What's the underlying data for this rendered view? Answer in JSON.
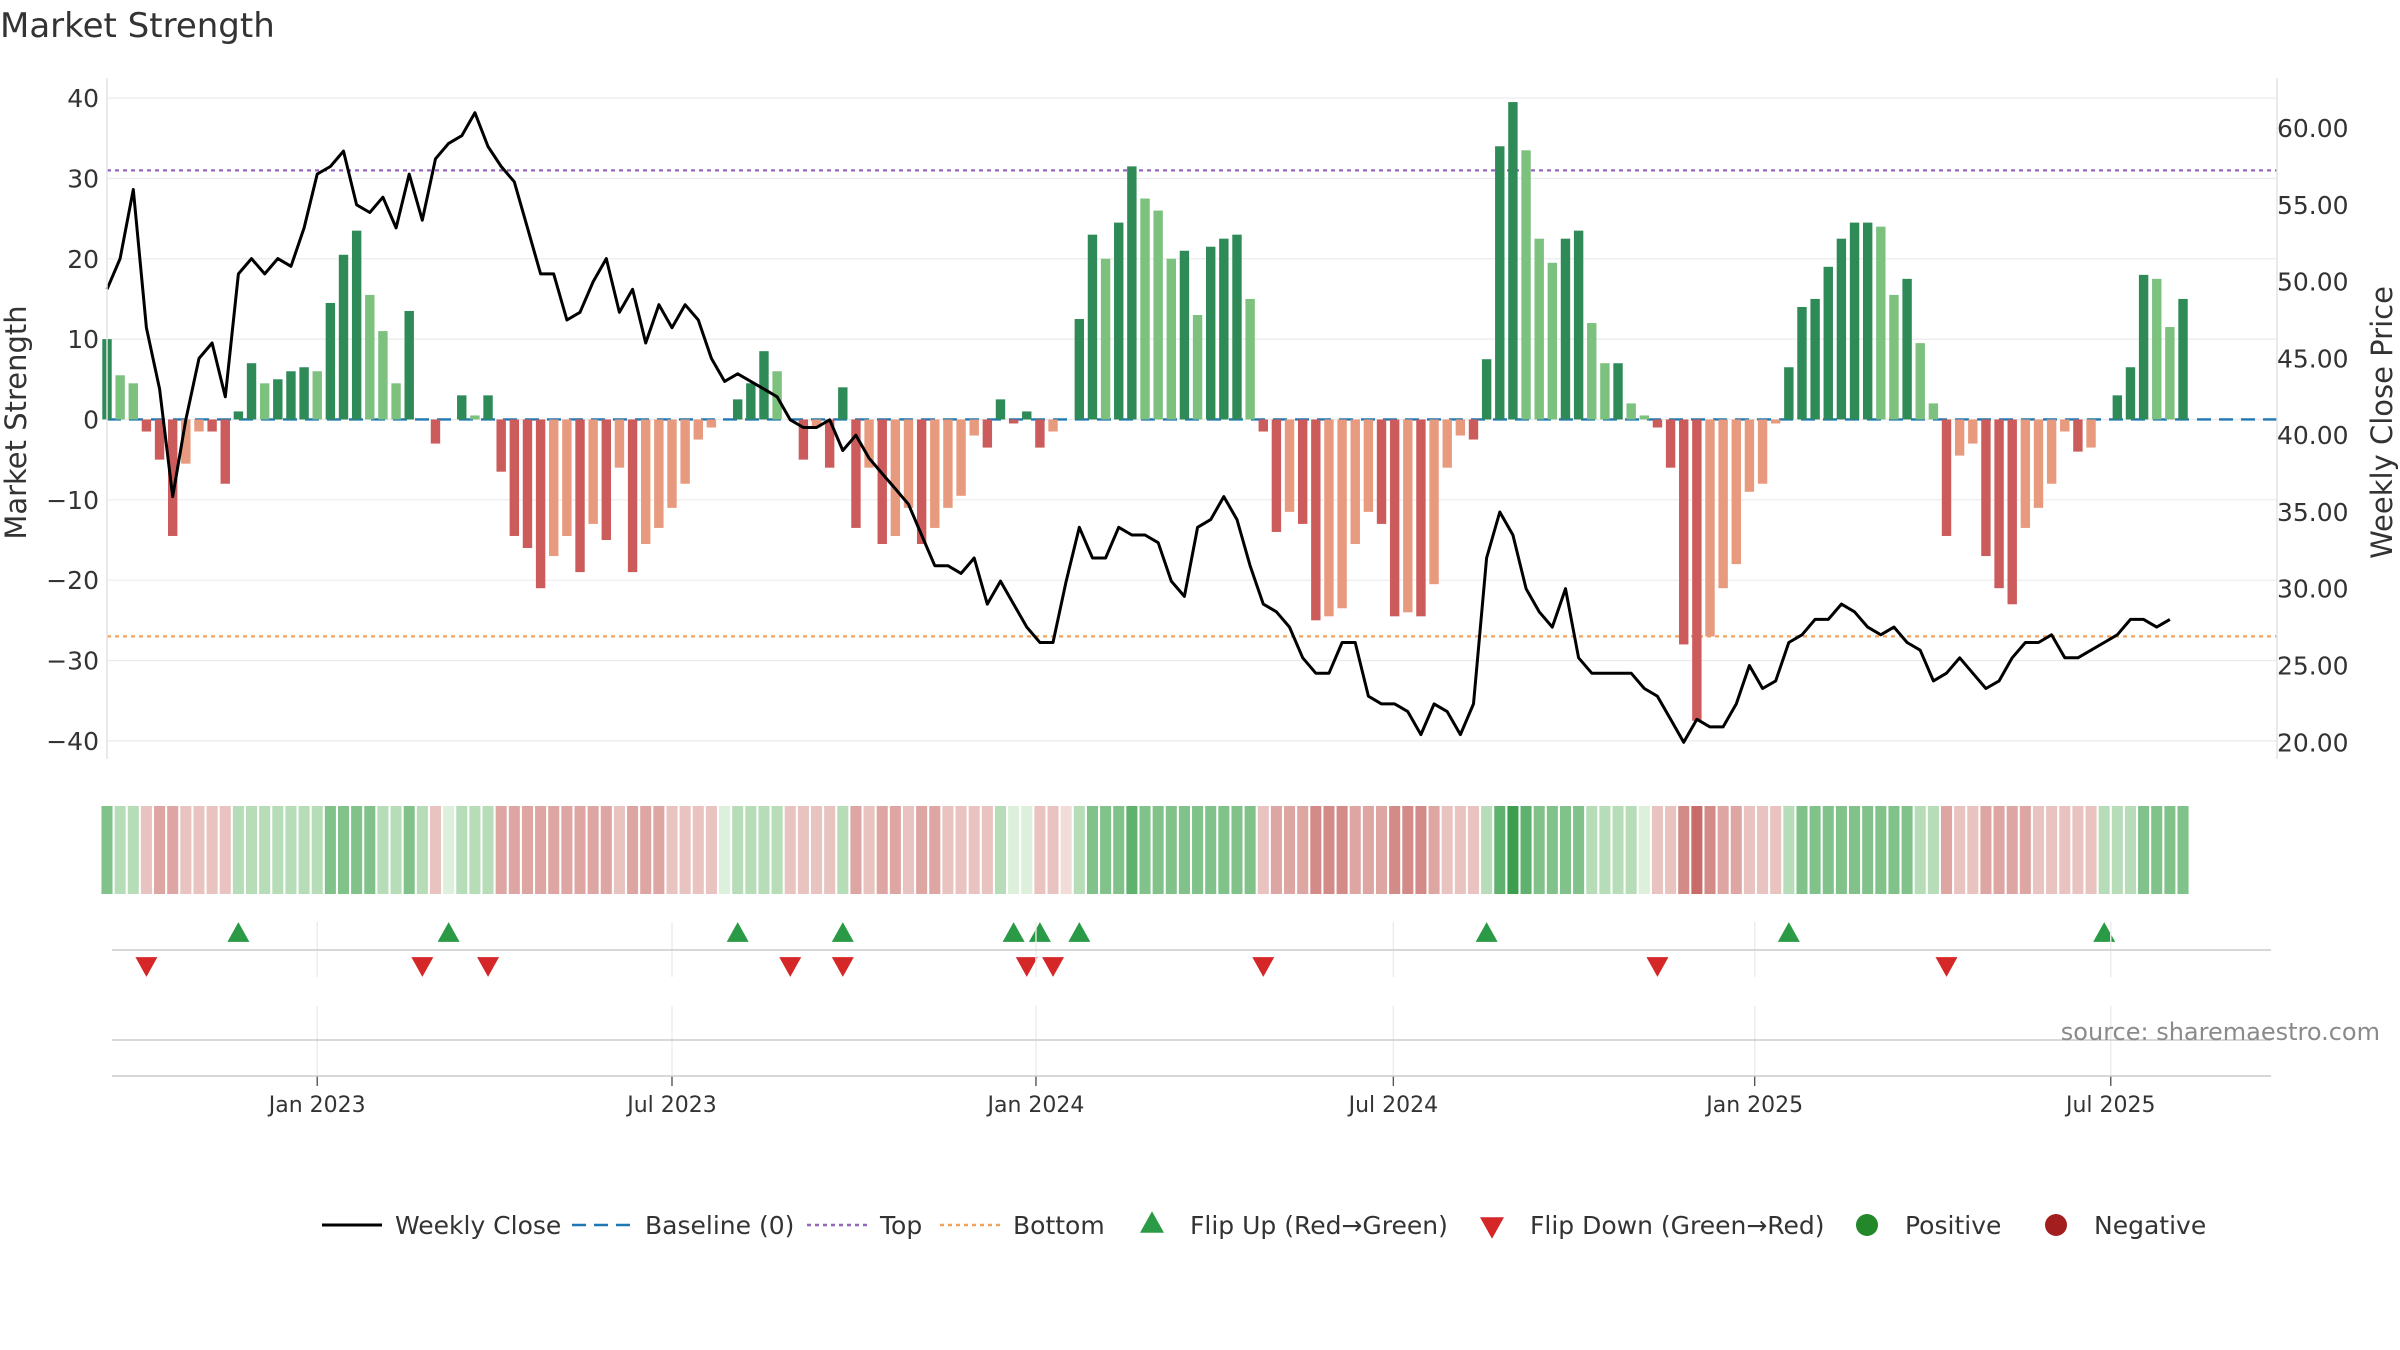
{
  "chart_data": {
    "type": "bar",
    "title": "Market Strength",
    "ylabel": "Market Strength",
    "y2label": "Weekly Close Price",
    "ylim": [
      -44,
      42
    ],
    "y2lim": [
      18.0,
      63.0
    ],
    "yticks": [
      40,
      30,
      20,
      10,
      0,
      -10,
      -20,
      -30,
      -40
    ],
    "ytick_labels": [
      "40",
      "30",
      "20",
      "10",
      "0",
      "−10",
      "−20",
      "−30",
      "−40"
    ],
    "y2ticks": [
      60,
      55,
      50,
      45,
      40,
      35,
      30,
      25,
      20
    ],
    "y2tick_labels": [
      "60.00",
      "55.00",
      "50.00",
      "45.00",
      "40.00",
      "35.00",
      "30.00",
      "25.00",
      "20.00"
    ],
    "x_range_weeks": [
      0,
      165
    ],
    "x_ticks": [
      {
        "label": "Jan 2023",
        "week": 16
      },
      {
        "label": "Jul 2023",
        "week": 43
      },
      {
        "label": "Jan 2024",
        "week": 70.7
      },
      {
        "label": "Jul 2024",
        "week": 97.9
      },
      {
        "label": "Jan 2025",
        "week": 125.4
      },
      {
        "label": "Jul 2025",
        "week": 152.5
      }
    ],
    "top_line": 31,
    "bottom_line": -27,
    "baseline": 0,
    "strength": [
      10,
      5.5,
      4.5,
      -1.5,
      -5,
      -14.5,
      -5.5,
      -1.5,
      -1.5,
      -8,
      1,
      7,
      4.5,
      5,
      6,
      6.5,
      6,
      14.5,
      20.5,
      23.5,
      15.5,
      11,
      4.5,
      13.5,
      0,
      -3,
      0,
      3,
      0.5,
      3,
      -6.5,
      -14.5,
      -16,
      -21,
      -17,
      -14.5,
      -19,
      -13,
      -15,
      -6,
      -19,
      -15.5,
      -13.5,
      -11,
      -8,
      -2.5,
      -1,
      0,
      2.5,
      4.5,
      8.5,
      6,
      0,
      -5,
      -1,
      -6,
      4,
      -13.5,
      -6,
      -15.5,
      -14.5,
      -11,
      -15.5,
      -13.5,
      -11,
      -9.5,
      -2,
      -3.5,
      2.5,
      -0.5,
      1,
      -3.5,
      -1.5,
      0,
      12.5,
      23,
      20,
      24.5,
      31.5,
      27.5,
      26,
      20,
      21,
      13,
      21.5,
      22.5,
      23,
      15,
      -1.5,
      -14,
      -11.5,
      -13,
      -25,
      -24.5,
      -23.5,
      -15.5,
      -11.5,
      -13,
      -24.5,
      -24,
      -24.5,
      -20.5,
      -6,
      -2,
      -2.5,
      7.5,
      34,
      39.5,
      33.5,
      22.5,
      19.5,
      22.5,
      23.5,
      12,
      7,
      7,
      2,
      0.5,
      -1,
      -6,
      -28,
      -37.5,
      -27,
      -21,
      -18,
      -9,
      -8,
      -0.5,
      6.5,
      14,
      15,
      19,
      22.5,
      24.5,
      24.5,
      24,
      15.5,
      17.5,
      9.5,
      2,
      -14.5,
      -4.5,
      -3,
      -17,
      -21,
      -23,
      -13.5,
      -11,
      -8,
      -1.5,
      -4,
      -3.5,
      0,
      3,
      6.5,
      18,
      17.5,
      11.5,
      15
    ],
    "weekly_close": [
      49.5,
      51.5,
      56,
      47,
      43,
      36,
      41,
      45,
      46,
      42.5,
      50.5,
      51.5,
      50.5,
      51.5,
      51,
      53.5,
      57,
      57.5,
      58.5,
      55,
      54.5,
      55.5,
      53.5,
      57,
      54,
      58,
      59,
      59.5,
      61,
      58.8,
      57.5,
      56.5,
      53.5,
      50.5,
      50.5,
      47.5,
      48,
      50,
      51.5,
      48,
      49.5,
      46,
      48.5,
      47,
      48.5,
      47.5,
      45,
      43.5,
      44,
      43.5,
      43,
      42.5,
      41,
      40.5,
      40.5,
      41,
      39,
      40,
      38.5,
      37.5,
      36.5,
      35.5,
      33.5,
      31.5,
      31.5,
      31,
      32,
      29,
      30.5,
      29,
      27.5,
      26.5,
      26.5,
      30.5,
      34,
      32,
      32,
      34,
      33.5,
      33.5,
      33,
      30.5,
      29.5,
      34,
      34.5,
      36,
      34.5,
      31.5,
      29,
      28.5,
      27.5,
      25.5,
      24.5,
      24.5,
      26.5,
      26.5,
      23,
      22.5,
      22.5,
      22,
      20.5,
      22.5,
      22,
      20.5,
      22.5,
      32,
      35,
      33.5,
      30,
      28.5,
      27.5,
      30,
      25.5,
      24.5,
      24.5,
      24.5,
      24.5,
      23.5,
      23,
      21.5,
      20,
      21.5,
      21,
      21,
      22.5,
      25,
      23.5,
      24,
      26.5,
      27,
      28,
      28,
      29,
      28.5,
      27.5,
      27,
      27.5,
      26.5,
      26,
      24,
      24.5,
      25.5,
      24.5,
      23.5,
      24,
      25.5,
      26.5,
      26.5,
      27,
      25.5,
      25.5,
      26,
      26.5,
      27,
      28,
      28,
      27.5,
      28
    ],
    "heat_strip": [
      "g2",
      "g1",
      "g1",
      "r1",
      "r2",
      "r2",
      "r1",
      "r1",
      "r1",
      "r1",
      "g1",
      "g1",
      "g1",
      "g1",
      "g1",
      "g1",
      "g1",
      "g2",
      "g2",
      "g2",
      "g2",
      "g1",
      "g1",
      "g2",
      "g1",
      "r1",
      "g0",
      "g1",
      "g1",
      "g1",
      "r2",
      "r2",
      "r2",
      "r2",
      "r2",
      "r2",
      "r2",
      "r2",
      "r2",
      "r1",
      "r2",
      "r2",
      "r2",
      "r1",
      "r1",
      "r1",
      "r1",
      "g0",
      "g1",
      "g1",
      "g1",
      "g1",
      "r1",
      "r1",
      "r1",
      "r1",
      "g1",
      "r2",
      "r1",
      "r2",
      "r2",
      "r1",
      "r2",
      "r2",
      "r1",
      "r1",
      "r1",
      "r1",
      "g1",
      "g0",
      "g0",
      "r1",
      "r1",
      "r0",
      "g1",
      "g2",
      "g2",
      "g2",
      "g3",
      "g2",
      "g2",
      "g2",
      "g2",
      "g2",
      "g2",
      "g2",
      "g2",
      "g2",
      "r1",
      "r2",
      "r2",
      "r2",
      "r3",
      "r3",
      "r3",
      "r2",
      "r2",
      "r2",
      "r3",
      "r3",
      "r3",
      "r2",
      "r1",
      "r1",
      "r1",
      "g1",
      "g3",
      "g4",
      "g3",
      "g2",
      "g2",
      "g2",
      "g2",
      "g1",
      "g1",
      "g1",
      "g1",
      "g0",
      "r1",
      "r1",
      "r3",
      "r4",
      "r3",
      "r2",
      "r2",
      "r1",
      "r1",
      "r1",
      "g1",
      "g2",
      "g2",
      "g2",
      "g2",
      "g2",
      "g2",
      "g2",
      "g2",
      "g2",
      "g1",
      "g1",
      "r2",
      "r1",
      "r1",
      "r2",
      "r2",
      "r2",
      "r2",
      "r1",
      "r1",
      "r1",
      "r1",
      "r1",
      "g1",
      "g1",
      "g1",
      "g2",
      "g2",
      "g2",
      "g2"
    ],
    "flip_up_weeks": [
      10,
      26,
      48,
      56,
      69,
      71,
      74,
      105,
      128,
      152
    ],
    "flip_down_weeks": [
      3,
      24,
      29,
      52,
      56,
      70,
      72,
      88,
      118,
      140
    ],
    "axis_x_labels": [
      "Jan 2023",
      "Jul 2023",
      "Jan 2024",
      "Jul 2024",
      "Jan 2025",
      "Jul 2025"
    ]
  },
  "colors": {
    "pos_dark": "#2e8a57",
    "pos_light": "#7dc17f",
    "neg_dark": "#cc5c5c",
    "neg_light": "#e89a7e",
    "close": "#000000",
    "baseline": "#1f77b4",
    "top": "#9467bd",
    "bottom": "#f0a35e",
    "flip_up": "#2a9a46",
    "flip_down": "#d62728",
    "positive": "#22882a",
    "negative": "#a31f1f",
    "heat": {
      "g0": "#ddf0db",
      "g1": "#b6ddb8",
      "g2": "#80c28a",
      "g3": "#5fb26e",
      "g4": "#3d9e50",
      "r0": "#f2dcda",
      "r1": "#e8c3c0",
      "r2": "#dda6a3",
      "r3": "#d38b87",
      "r4": "#c76c68"
    }
  },
  "legend": {
    "items": [
      {
        "key": "weekly_close",
        "label": "Weekly Close"
      },
      {
        "key": "baseline",
        "label": "Baseline (0)"
      },
      {
        "key": "top",
        "label": "Top"
      },
      {
        "key": "bottom",
        "label": "Bottom"
      },
      {
        "key": "flip_up",
        "label": "Flip Up (Red→Green)"
      },
      {
        "key": "flip_down",
        "label": "Flip Down (Green→Red)"
      },
      {
        "key": "positive",
        "label": "Positive"
      },
      {
        "key": "negative",
        "label": "Negative"
      }
    ]
  },
  "source_text": "source: sharemaestro.com"
}
